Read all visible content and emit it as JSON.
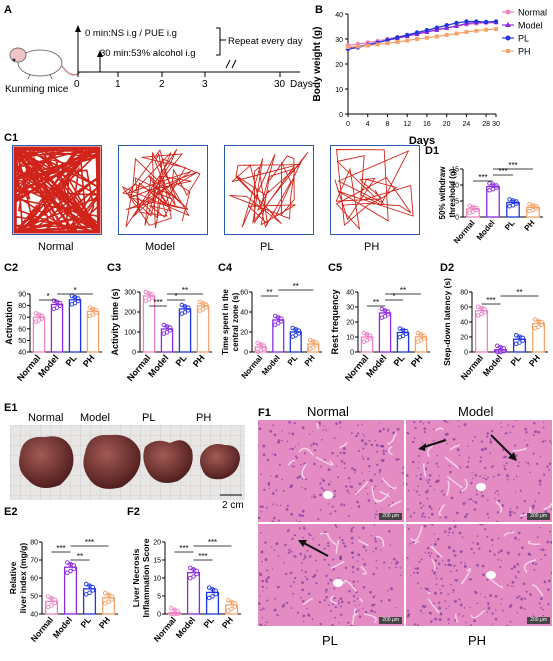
{
  "panels": {
    "A": {
      "label": "A",
      "mice": "Kunming mice",
      "step1": "0 min:NS i.g / PUE i.g",
      "step2": "30 min:53% alcohol i.g",
      "repeat": "Repeat every day",
      "ticks": [
        "0",
        "1",
        "2",
        "3",
        "30"
      ],
      "axis_unit": "Days"
    },
    "B": {
      "label": "B"
    },
    "C1": {
      "label": "C1",
      "groups": [
        "Normal",
        "Model",
        "PL",
        "PH"
      ]
    },
    "D1": {
      "label": "D1"
    },
    "C2": {
      "label": "C2"
    },
    "C3": {
      "label": "C3"
    },
    "C4": {
      "label": "C4"
    },
    "C5": {
      "label": "C5"
    },
    "D2": {
      "label": "D2"
    },
    "E1": {
      "label": "E1",
      "groups": [
        "Normal",
        "Model",
        "PL",
        "PH"
      ],
      "scale": "2 cm"
    },
    "E2": {
      "label": "E2"
    },
    "F2": {
      "label": "F2"
    },
    "F1": {
      "label": "F1",
      "groups_top": [
        "Normal",
        "Model"
      ],
      "groups_bottom": [
        "PL",
        "PH"
      ],
      "scale": "200 μm"
    }
  },
  "colors": {
    "Normal": "#ee82c4",
    "Model": "#8a2be2",
    "PL": "#1f35e0",
    "PH": "#f5a36b"
  },
  "chart_data": [
    {
      "id": "B",
      "type": "line",
      "xlabel": "Days",
      "ylabel": "Body weight (g)",
      "x": [
        0,
        2,
        4,
        6,
        8,
        10,
        12,
        14,
        16,
        18,
        20,
        22,
        24,
        26,
        28,
        30
      ],
      "xticks": [
        "0",
        "4",
        "8",
        "12",
        "16",
        "20",
        "24",
        "28",
        "30"
      ],
      "xtick_values": [
        0,
        4,
        8,
        12,
        16,
        20,
        24,
        28,
        30
      ],
      "ylim": [
        0,
        40
      ],
      "yticks": [
        0,
        10,
        20,
        30,
        40
      ],
      "legend": "right",
      "series": [
        {
          "name": "Normal",
          "values": [
            27.5,
            28,
            28.6,
            29.2,
            30,
            30.8,
            31.5,
            32.3,
            33,
            33.8,
            34.5,
            35.2,
            35.8,
            36.2,
            36.4,
            36.5
          ]
        },
        {
          "name": "Model",
          "values": [
            26.5,
            27,
            27.8,
            28.6,
            29.5,
            30.3,
            31.2,
            32,
            32.8,
            33.6,
            34.4,
            35.2,
            36.2,
            36.6,
            36.8,
            36.8
          ]
        },
        {
          "name": "PL",
          "values": [
            26,
            26.6,
            27.6,
            28.5,
            29.6,
            30.6,
            31.6,
            32.6,
            33.5,
            34.5,
            35.5,
            36.4,
            37,
            37,
            36.8,
            37
          ]
        },
        {
          "name": "PH",
          "values": [
            26.8,
            27,
            27.4,
            27.8,
            28.3,
            28.8,
            29.4,
            30,
            30.5,
            31,
            31.6,
            32.2,
            32.8,
            33.3,
            33.7,
            34
          ]
        }
      ]
    },
    {
      "id": "D1",
      "type": "bar",
      "ylabel": "50% withdraw threshold (g)",
      "categories": [
        "Normal",
        "Model",
        "PL",
        "PH"
      ],
      "values": [
        2.5,
        9.5,
        4.5,
        3
      ],
      "ylim": [
        0,
        15
      ],
      "yticks": [
        0,
        5,
        10,
        15
      ],
      "sig": [
        "***",
        "***",
        "***"
      ]
    },
    {
      "id": "C2",
      "type": "bar",
      "ylabel": "Activation",
      "categories": [
        "Normal",
        "Model",
        "PL",
        "PH"
      ],
      "values": [
        70,
        81,
        85,
        75
      ],
      "ylim": [
        40,
        90
      ],
      "yticks": [
        40,
        50,
        60,
        70,
        80,
        90
      ],
      "sig": [
        "*",
        "*"
      ]
    },
    {
      "id": "C3",
      "type": "bar",
      "ylabel": "Activity time (s)",
      "categories": [
        "Normal",
        "Model",
        "PL",
        "PH"
      ],
      "values": [
        280,
        115,
        215,
        230
      ],
      "ylim": [
        0,
        300
      ],
      "yticks": [
        0,
        100,
        200,
        300
      ],
      "sig": [
        "***",
        "*",
        "**"
      ]
    },
    {
      "id": "C4",
      "type": "bar",
      "ylabel": "Time spent in the central zone (s)",
      "categories": [
        "Normal",
        "Model",
        "PL",
        "PH"
      ],
      "values": [
        5,
        32,
        20,
        8
      ],
      "ylim": [
        0,
        60
      ],
      "yticks": [
        0,
        20,
        40,
        60
      ],
      "sig": [
        "**",
        "**"
      ]
    },
    {
      "id": "C5",
      "type": "bar",
      "ylabel": "Rest frequency",
      "categories": [
        "Normal",
        "Model",
        "PL",
        "PH"
      ],
      "values": [
        10,
        26,
        13,
        10
      ],
      "ylim": [
        0,
        40
      ],
      "yticks": [
        0,
        10,
        20,
        30,
        40
      ],
      "sig": [
        "**",
        "*",
        "**"
      ]
    },
    {
      "id": "D2",
      "type": "bar",
      "ylabel": "Step-down latency (s)",
      "categories": [
        "Normal",
        "Model",
        "PL",
        "PH"
      ],
      "values": [
        55,
        3,
        17,
        38
      ],
      "ylim": [
        0,
        80
      ],
      "yticks": [
        0,
        20,
        40,
        60,
        80
      ],
      "sig": [
        "***",
        "**"
      ]
    },
    {
      "id": "E2",
      "type": "bar",
      "ylabel": "Relative liver index (mg/g)",
      "categories": [
        "Normal",
        "Model",
        "PL",
        "PH"
      ],
      "values": [
        47,
        66,
        54,
        49
      ],
      "ylim": [
        40,
        80
      ],
      "yticks": [
        40,
        50,
        60,
        70,
        80
      ],
      "sig": [
        "***",
        "**",
        "***"
      ]
    },
    {
      "id": "F2",
      "type": "bar",
      "ylabel": "Liver Necrosis Inflammation Score",
      "categories": [
        "Normal",
        "Model",
        "PL",
        "PH"
      ],
      "values": [
        0.3,
        11.5,
        6,
        2.5
      ],
      "ylim": [
        0,
        20
      ],
      "yticks": [
        0,
        5,
        10,
        15,
        20
      ],
      "sig": [
        "***",
        "***",
        "***"
      ]
    }
  ]
}
